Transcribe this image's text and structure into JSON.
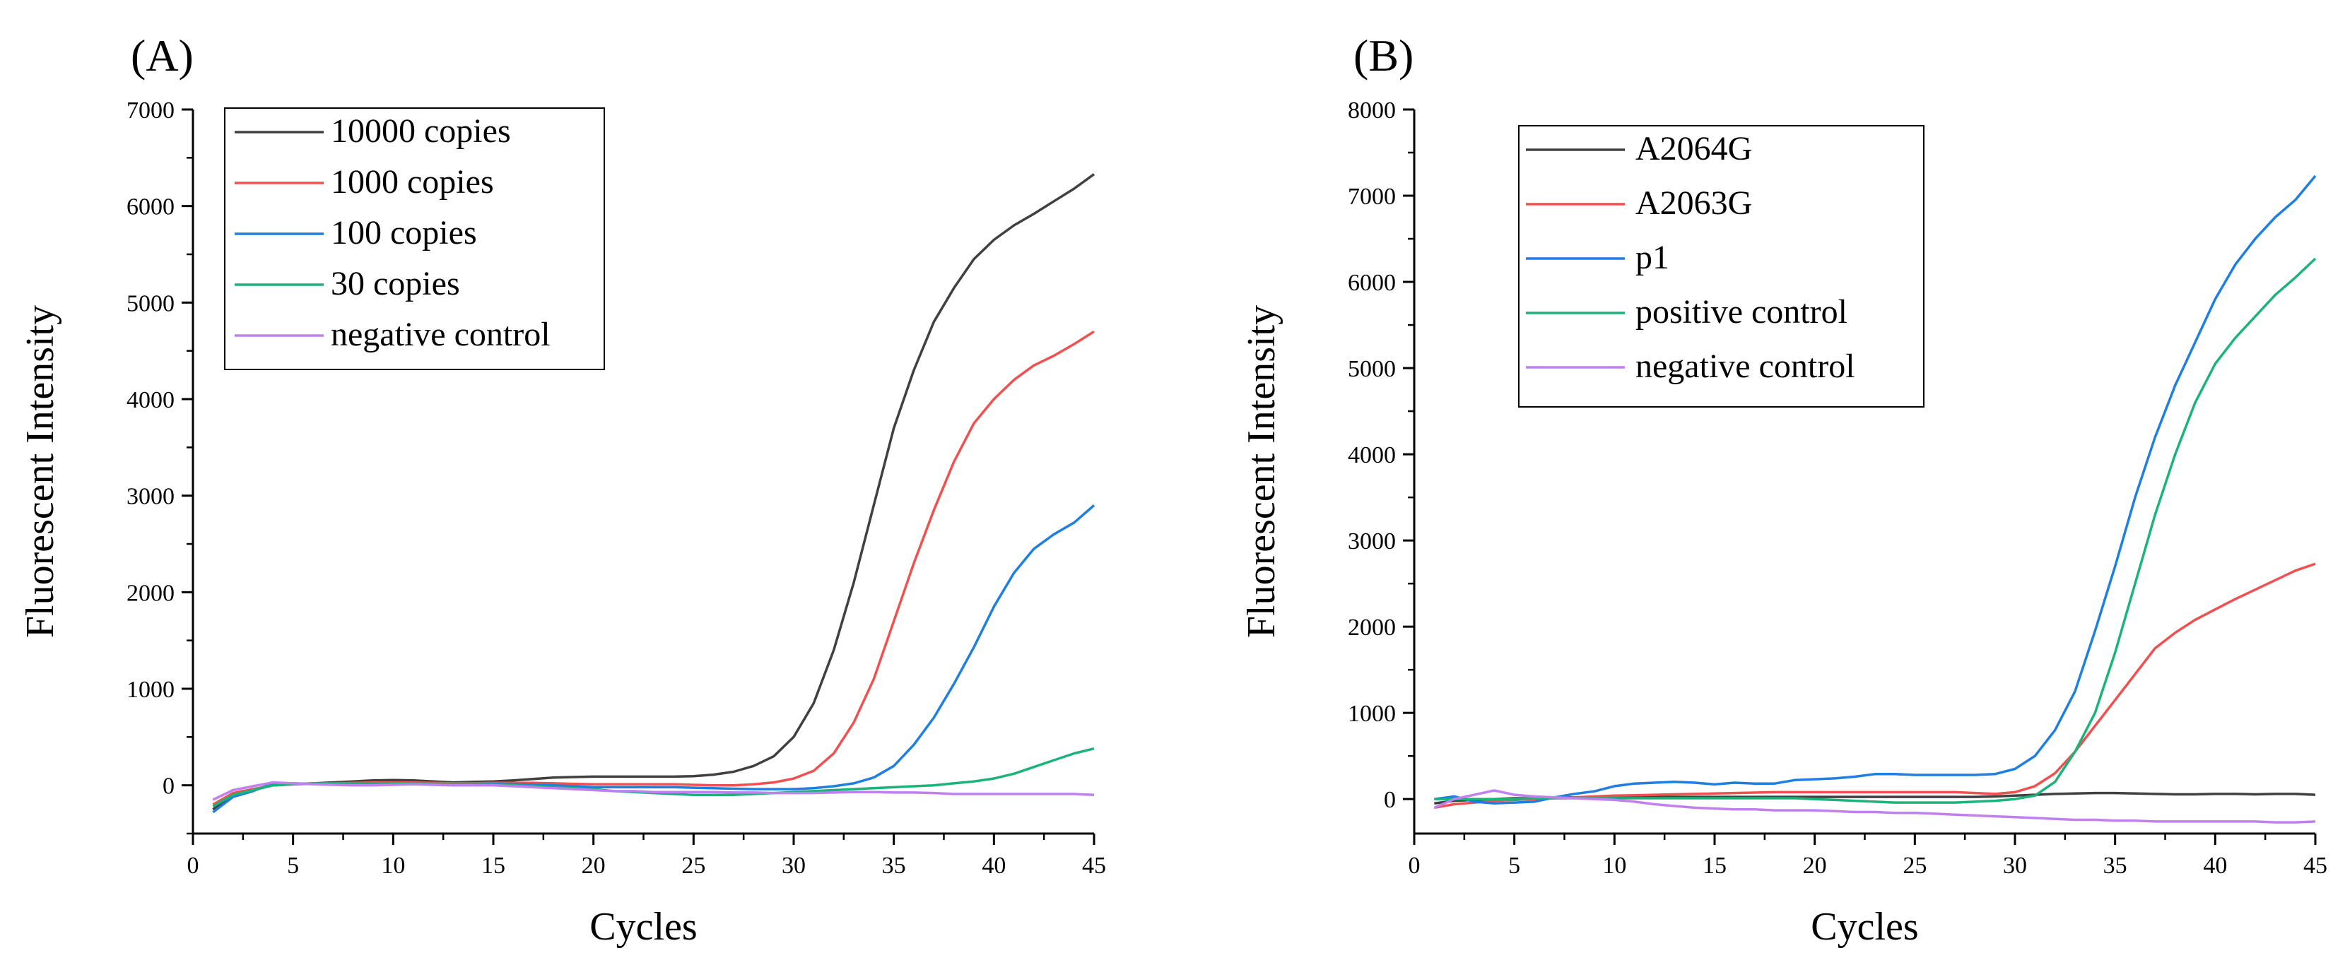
{
  "chart_data": [
    {
      "type": "line",
      "panel_label": "(A)",
      "title": "",
      "xlabel": "Cycles",
      "ylabel": "Fluorescent Intensity",
      "xlim": [
        0,
        45
      ],
      "ylim": [
        -500,
        7000
      ],
      "xticks": [
        0,
        5,
        10,
        15,
        20,
        25,
        30,
        35,
        40,
        45
      ],
      "yticks": [
        0,
        1000,
        2000,
        3000,
        4000,
        5000,
        6000,
        7000
      ],
      "legend_position": "top-left",
      "x": [
        1,
        2,
        3,
        4,
        5,
        6,
        7,
        8,
        9,
        10,
        11,
        12,
        13,
        14,
        15,
        16,
        17,
        18,
        19,
        20,
        21,
        22,
        23,
        24,
        25,
        26,
        27,
        28,
        29,
        30,
        31,
        32,
        33,
        34,
        35,
        36,
        37,
        38,
        39,
        40,
        41,
        42,
        43,
        44,
        45
      ],
      "series": [
        {
          "name": "10000 copies",
          "color": "#404040",
          "values": [
            -250,
            -100,
            -50,
            0,
            10,
            20,
            30,
            40,
            50,
            55,
            50,
            40,
            30,
            35,
            40,
            50,
            65,
            80,
            85,
            90,
            90,
            90,
            90,
            90,
            95,
            110,
            140,
            200,
            300,
            500,
            850,
            1400,
            2100,
            2900,
            3700,
            4300,
            4800,
            5150,
            5450,
            5650,
            5800,
            5920,
            6050,
            6180,
            6330
          ]
        },
        {
          "name": "1000 copies",
          "color": "#f05050",
          "values": [
            -200,
            -80,
            -40,
            0,
            10,
            15,
            20,
            25,
            30,
            30,
            30,
            25,
            20,
            20,
            25,
            25,
            25,
            20,
            15,
            10,
            10,
            10,
            10,
            10,
            5,
            0,
            0,
            10,
            30,
            70,
            150,
            330,
            650,
            1100,
            1700,
            2300,
            2850,
            3350,
            3750,
            4000,
            4200,
            4350,
            4450,
            4570,
            4700
          ]
        },
        {
          "name": "100 copies",
          "color": "#1f7fe0",
          "values": [
            -280,
            -120,
            -60,
            20,
            20,
            15,
            10,
            10,
            10,
            15,
            15,
            10,
            10,
            10,
            15,
            10,
            5,
            0,
            -10,
            -20,
            -20,
            -20,
            -20,
            -20,
            -25,
            -30,
            -35,
            -40,
            -40,
            -40,
            -30,
            -10,
            20,
            80,
            200,
            420,
            700,
            1050,
            1430,
            1850,
            2200,
            2450,
            2600,
            2720,
            2900
          ]
        },
        {
          "name": "30 copies",
          "color": "#1bb37a",
          "values": [
            -220,
            -100,
            -50,
            0,
            10,
            20,
            20,
            20,
            20,
            20,
            15,
            10,
            10,
            10,
            10,
            0,
            -10,
            -20,
            -30,
            -40,
            -60,
            -70,
            -80,
            -90,
            -100,
            -100,
            -100,
            -90,
            -80,
            -70,
            -60,
            -50,
            -40,
            -30,
            -20,
            -10,
            0,
            20,
            40,
            70,
            120,
            190,
            260,
            330,
            380
          ]
        },
        {
          "name": "negative control",
          "color": "#c080f0",
          "values": [
            -150,
            -50,
            -10,
            30,
            20,
            10,
            5,
            0,
            0,
            5,
            10,
            5,
            0,
            0,
            0,
            -10,
            -20,
            -30,
            -40,
            -50,
            -60,
            -60,
            -70,
            -70,
            -70,
            -70,
            -75,
            -75,
            -80,
            -80,
            -80,
            -75,
            -70,
            -70,
            -75,
            -75,
            -80,
            -90,
            -90,
            -90,
            -90,
            -90,
            -90,
            -90,
            -100
          ]
        }
      ]
    },
    {
      "type": "line",
      "panel_label": "(B)",
      "title": "",
      "xlabel": "Cycles",
      "ylabel": "Fluorescent Intensity",
      "xlim": [
        0,
        45
      ],
      "ylim": [
        -400,
        8000
      ],
      "xticks": [
        0,
        5,
        10,
        15,
        20,
        25,
        30,
        35,
        40,
        45
      ],
      "yticks": [
        0,
        1000,
        2000,
        3000,
        4000,
        5000,
        6000,
        7000,
        8000
      ],
      "legend_position": "top-left",
      "x": [
        1,
        2,
        3,
        4,
        5,
        6,
        7,
        8,
        9,
        10,
        11,
        12,
        13,
        14,
        15,
        16,
        17,
        18,
        19,
        20,
        21,
        22,
        23,
        24,
        25,
        26,
        27,
        28,
        29,
        30,
        31,
        32,
        33,
        34,
        35,
        36,
        37,
        38,
        39,
        40,
        41,
        42,
        43,
        44,
        45
      ],
      "series": [
        {
          "name": "A2064G",
          "color": "#404040",
          "values": [
            -50,
            -20,
            -10,
            0,
            10,
            10,
            20,
            20,
            20,
            25,
            25,
            25,
            25,
            25,
            25,
            25,
            25,
            25,
            25,
            25,
            25,
            25,
            25,
            25,
            25,
            25,
            25,
            25,
            30,
            40,
            50,
            60,
            65,
            70,
            70,
            65,
            60,
            55,
            55,
            60,
            60,
            55,
            60,
            60,
            50
          ]
        },
        {
          "name": "A2063G",
          "color": "#f05050",
          "values": [
            -100,
            -60,
            -40,
            -20,
            -10,
            0,
            10,
            20,
            30,
            40,
            45,
            50,
            55,
            60,
            65,
            70,
            75,
            80,
            80,
            80,
            80,
            80,
            80,
            80,
            80,
            80,
            80,
            70,
            60,
            80,
            150,
            300,
            550,
            850,
            1150,
            1450,
            1750,
            1930,
            2080,
            2200,
            2320,
            2430,
            2540,
            2650,
            2730
          ]
        },
        {
          "name": "p1",
          "color": "#1f7fe0",
          "values": [
            0,
            30,
            -30,
            -50,
            -40,
            -30,
            20,
            60,
            90,
            150,
            180,
            190,
            200,
            190,
            170,
            190,
            180,
            180,
            220,
            230,
            240,
            260,
            290,
            290,
            280,
            280,
            280,
            280,
            290,
            350,
            500,
            800,
            1250,
            1950,
            2700,
            3500,
            4200,
            4800,
            5300,
            5800,
            6200,
            6500,
            6750,
            6950,
            7230
          ]
        },
        {
          "name": "positive control",
          "color": "#1bb37a",
          "values": [
            0,
            0,
            0,
            0,
            0,
            10,
            10,
            10,
            10,
            10,
            10,
            10,
            10,
            10,
            10,
            10,
            10,
            10,
            10,
            0,
            -10,
            -20,
            -30,
            -40,
            -40,
            -40,
            -40,
            -30,
            -20,
            0,
            40,
            200,
            550,
            1000,
            1700,
            2500,
            3300,
            4000,
            4600,
            5050,
            5350,
            5600,
            5850,
            6050,
            6270
          ]
        },
        {
          "name": "negative control",
          "color": "#c080f0",
          "values": [
            -100,
            0,
            50,
            100,
            50,
            30,
            20,
            10,
            0,
            -10,
            -30,
            -60,
            -80,
            -100,
            -110,
            -120,
            -120,
            -130,
            -130,
            -130,
            -140,
            -150,
            -150,
            -160,
            -160,
            -170,
            -180,
            -190,
            -200,
            -210,
            -220,
            -230,
            -240,
            -240,
            -250,
            -250,
            -260,
            -260,
            -260,
            -260,
            -260,
            -260,
            -270,
            -270,
            -260
          ]
        }
      ]
    }
  ]
}
